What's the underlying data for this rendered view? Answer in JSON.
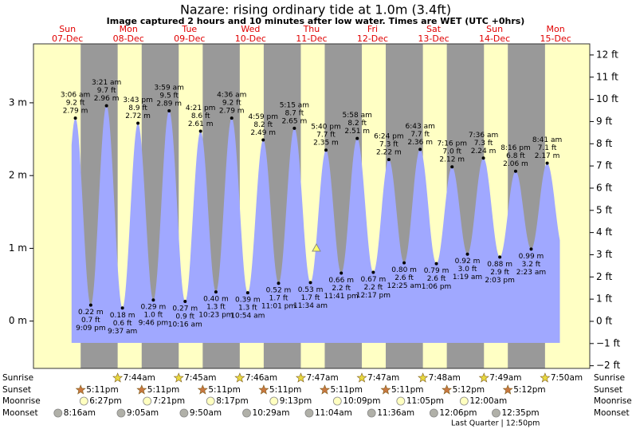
{
  "chart_data": {
    "type": "tide",
    "title": "Nazare: rising  ordinary tide at 1.0m (3.4ft)",
    "subtitle": "Image captured 2 hours and 10 minutes after low water. Times are WET (UTC +0hrs)",
    "ylim": [
      -0.65,
      3.81
    ],
    "yticks": [
      {
        "value": 0,
        "label": "0 m"
      },
      {
        "value": 1,
        "label": "1 m"
      },
      {
        "value": 2,
        "label": "2 m"
      },
      {
        "value": 3,
        "label": "3 m"
      }
    ],
    "y2lim": [
      -2.12,
      12.5
    ],
    "y2ticks": [
      {
        "value": -2,
        "label": "−2 ft"
      },
      {
        "value": -1,
        "label": "−1 ft"
      },
      {
        "value": 0,
        "label": "0 ft"
      },
      {
        "value": 1,
        "label": "1 ft"
      },
      {
        "value": 2,
        "label": "2 ft"
      },
      {
        "value": 3,
        "label": "3 ft"
      },
      {
        "value": 4,
        "label": "4 ft"
      },
      {
        "value": 5,
        "label": "5 ft"
      },
      {
        "value": 6,
        "label": "6 ft"
      },
      {
        "value": 7,
        "label": "7 ft"
      },
      {
        "value": 8,
        "label": "8 ft"
      },
      {
        "value": 9,
        "label": "9 ft"
      },
      {
        "value": 10,
        "label": "10 ft"
      },
      {
        "value": 11,
        "label": "11 ft"
      },
      {
        "value": 12,
        "label": "12 ft"
      }
    ],
    "colors": {
      "tide": "#a0a8ff",
      "day": "#ffffc4",
      "night": "#999999",
      "day_label": "#e00000"
    },
    "row_labels": {
      "sunrise": "Sunrise",
      "sunset": "Sunset",
      "moonrise": "Moonrise",
      "moonset": "Moonset"
    },
    "moon_phase": "Last Quarter | 12:50pm",
    "days": [
      {
        "name": "Sun",
        "date": "07-Dec",
        "sunset": "5:11pm",
        "moonrise": "6:27pm",
        "moonset": "8:16am"
      },
      {
        "name": "Mon",
        "date": "08-Dec",
        "sunrise": "7:44am",
        "sunset": "5:11pm",
        "moonrise": "7:21pm",
        "moonset": "9:05am"
      },
      {
        "name": "Tue",
        "date": "09-Dec",
        "sunrise": "7:45am",
        "sunset": "5:11pm",
        "moonrise": "8:17pm",
        "moonset": "9:50am"
      },
      {
        "name": "Wed",
        "date": "10-Dec",
        "sunrise": "7:46am",
        "sunset": "5:11pm",
        "moonrise": "9:13pm",
        "moonset": "10:29am"
      },
      {
        "name": "Thu",
        "date": "11-Dec",
        "sunrise": "7:47am",
        "sunset": "5:11pm",
        "moonrise": "10:09pm",
        "moonset": "11:04am"
      },
      {
        "name": "Fri",
        "date": "12-Dec",
        "sunrise": "7:47am",
        "sunset": "5:11pm",
        "moonrise": "11:05pm",
        "moonset": "11:36am"
      },
      {
        "name": "Sat",
        "date": "13-Dec",
        "sunrise": "7:48am",
        "sunset": "5:12pm",
        "moonset": "12:06pm"
      },
      {
        "name": "Sun",
        "date": "14-Dec",
        "sunrise": "7:49am",
        "sunset": "5:12pm",
        "moonrise": "12:00am",
        "moonset": "12:35pm"
      },
      {
        "name": "Mon",
        "date": "15-Dec",
        "sunrise": "7:50am"
      }
    ],
    "tides": [
      {
        "time": "3:06 am",
        "ft": {
          "value": 9.2,
          "label": "9.2 ft"
        },
        "m": {
          "value": 2.79,
          "label": "2.79 m"
        }
      },
      {
        "time": "9:09 pm",
        "ft": {
          "value": 0.7,
          "label": "0.7 ft"
        },
        "m": {
          "value": 0.22,
          "label": "0.22 m"
        }
      },
      {
        "time": "3:21 am",
        "ft": {
          "value": 9.7,
          "label": "9.7 ft"
        },
        "m": {
          "value": 2.96,
          "label": "2.96 m"
        }
      },
      {
        "time": "9:37 am",
        "ft": {
          "value": 0.6,
          "label": "0.6 ft"
        },
        "m": {
          "value": 0.18,
          "label": "0.18 m"
        }
      },
      {
        "time": "3:43 pm",
        "ft": {
          "value": 8.9,
          "label": "8.9 ft"
        },
        "m": {
          "value": 2.72,
          "label": "2.72 m"
        }
      },
      {
        "time": "9:46 pm",
        "ft": {
          "value": 1.0,
          "label": "1.0 ft"
        },
        "m": {
          "value": 0.29,
          "label": "0.29 m"
        }
      },
      {
        "time": "3:59 am",
        "ft": {
          "value": 9.5,
          "label": "9.5 ft"
        },
        "m": {
          "value": 2.89,
          "label": "2.89 m"
        }
      },
      {
        "time": "10:16 am",
        "ft": {
          "value": 0.9,
          "label": "0.9 ft"
        },
        "m": {
          "value": 0.27,
          "label": "0.27 m"
        }
      },
      {
        "time": "4:21 pm",
        "ft": {
          "value": 8.6,
          "label": "8.6 ft"
        },
        "m": {
          "value": 2.61,
          "label": "2.61 m"
        }
      },
      {
        "time": "10:23 pm",
        "ft": {
          "value": 1.3,
          "label": "1.3 ft"
        },
        "m": {
          "value": 0.4,
          "label": "0.40 m"
        }
      },
      {
        "time": "4:36 am",
        "ft": {
          "value": 9.2,
          "label": "9.2 ft"
        },
        "m": {
          "value": 2.79,
          "label": "2.79 m"
        }
      },
      {
        "time": "10:54 am",
        "ft": {
          "value": 1.3,
          "label": "1.3 ft"
        },
        "m": {
          "value": 0.39,
          "label": "0.39 m"
        }
      },
      {
        "time": "4:59 pm",
        "ft": {
          "value": 8.2,
          "label": "8.2 ft"
        },
        "m": {
          "value": 2.49,
          "label": "2.49 m"
        }
      },
      {
        "time": "11:01 pm",
        "ft": {
          "value": 1.7,
          "label": "1.7 ft"
        },
        "m": {
          "value": 0.52,
          "label": "0.52 m"
        }
      },
      {
        "time": "5:15 am",
        "ft": {
          "value": 8.7,
          "label": "8.7 ft"
        },
        "m": {
          "value": 2.65,
          "label": "2.65 m"
        }
      },
      {
        "time": "11:34 am",
        "ft": {
          "value": 1.7,
          "label": "1.7 ft"
        },
        "m": {
          "value": 0.53,
          "label": "0.53 m"
        }
      },
      {
        "time": "5:40 pm",
        "ft": {
          "value": 7.7,
          "label": "7.7 ft"
        },
        "m": {
          "value": 2.35,
          "label": "2.35 m"
        }
      },
      {
        "time": "11:41 pm",
        "ft": {
          "value": 2.2,
          "label": "2.2 ft"
        },
        "m": {
          "value": 0.66,
          "label": "0.66 m"
        }
      },
      {
        "time": "5:58 am",
        "ft": {
          "value": 8.2,
          "label": "8.2 ft"
        },
        "m": {
          "value": 2.51,
          "label": "2.51 m"
        }
      },
      {
        "time": "12:17 pm",
        "ft": {
          "value": 2.2,
          "label": "2.2 ft"
        },
        "m": {
          "value": 0.67,
          "label": "0.67 m"
        }
      },
      {
        "time": "6:24 pm",
        "ft": {
          "value": 7.3,
          "label": "7.3 ft"
        },
        "m": {
          "value": 2.22,
          "label": "2.22 m"
        }
      },
      {
        "time": "12:25 am",
        "ft": {
          "value": 2.6,
          "label": "2.6 ft"
        },
        "m": {
          "value": 0.8,
          "label": "0.80 m"
        }
      },
      {
        "time": "6:43 am",
        "ft": {
          "value": 7.7,
          "label": "7.7 ft"
        },
        "m": {
          "value": 2.36,
          "label": "2.36 m"
        }
      },
      {
        "time": "1:06 pm",
        "ft": {
          "value": 2.6,
          "label": "2.6 ft"
        },
        "m": {
          "value": 0.79,
          "label": "0.79 m"
        }
      },
      {
        "time": "7:16 pm",
        "ft": {
          "value": 7.0,
          "label": "7.0 ft"
        },
        "m": {
          "value": 2.12,
          "label": "2.12 m"
        }
      },
      {
        "time": "1:19 am",
        "ft": {
          "value": 3.0,
          "label": "3.0 ft"
        },
        "m": {
          "value": 0.92,
          "label": "0.92 m"
        }
      },
      {
        "time": "7:36 am",
        "ft": {
          "value": 7.3,
          "label": "7.3 ft"
        },
        "m": {
          "value": 2.24,
          "label": "2.24 m"
        }
      },
      {
        "time": "2:03 pm",
        "ft": {
          "value": 2.9,
          "label": "2.9 ft"
        },
        "m": {
          "value": 0.88,
          "label": "0.88 m"
        }
      },
      {
        "time": "8:16 pm",
        "ft": {
          "value": 6.8,
          "label": "6.8 ft"
        },
        "m": {
          "value": 2.06,
          "label": "2.06 m"
        }
      },
      {
        "time": "2:23 am",
        "ft": {
          "value": 3.2,
          "label": "3.2 ft"
        },
        "m": {
          "value": 0.99,
          "label": "0.99 m"
        }
      },
      {
        "time": "8:41 am",
        "ft": {
          "value": 7.1,
          "label": "7.1 ft"
        },
        "m": {
          "value": 2.17,
          "label": "2.17 m"
        }
      }
    ]
  }
}
